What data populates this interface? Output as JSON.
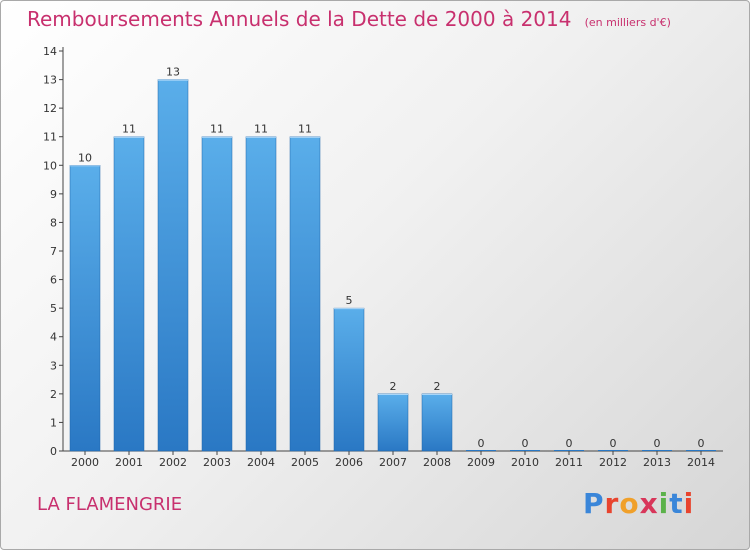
{
  "page": {
    "title": "Remboursements Annuels de la Dette de 2000 à 2014",
    "subtitle": "(en milliers d'€)",
    "commune": "LA FLAMENGRIE",
    "logo": {
      "letters": [
        {
          "char": "P",
          "color": "#3a86d9"
        },
        {
          "char": "r",
          "color": "#e8442e"
        },
        {
          "char": "o",
          "color": "#f0a02a"
        },
        {
          "char": "x",
          "color": "#d8365a"
        },
        {
          "char": "i",
          "color": "#5bb24a"
        },
        {
          "char": "t",
          "color": "#3a86d9"
        },
        {
          "char": "i",
          "color": "#e8442e"
        }
      ]
    }
  },
  "chart_data": {
    "type": "bar",
    "title": "Remboursements Annuels de la Dette de 2000 à 2014",
    "subtitle": "(en milliers d'€)",
    "categories": [
      "2000",
      "2001",
      "2002",
      "2003",
      "2004",
      "2005",
      "2006",
      "2007",
      "2008",
      "2009",
      "2010",
      "2011",
      "2012",
      "2013",
      "2014"
    ],
    "values": [
      10,
      11,
      13,
      11,
      11,
      11,
      5,
      2,
      2,
      0,
      0,
      0,
      0,
      0,
      0
    ],
    "ylim": [
      0,
      14
    ],
    "yticks": [
      0,
      1,
      2,
      3,
      4,
      5,
      6,
      7,
      8,
      9,
      10,
      11,
      12,
      13,
      14
    ],
    "grid": false,
    "bar_color": "#4a9fe0",
    "bar_color_dark": "#2a78c4"
  }
}
